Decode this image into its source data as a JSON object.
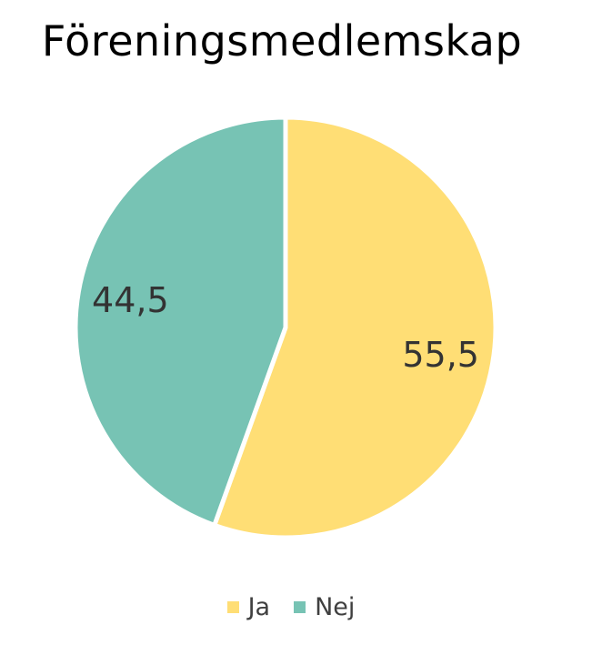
{
  "chart_data": {
    "type": "pie",
    "title": "Föreningsmedlemskap",
    "categories": [
      "Ja",
      "Nej"
    ],
    "values": [
      55.5,
      44.5
    ],
    "value_labels": [
      "55,5",
      "44,5"
    ],
    "colors": [
      "#FFDE75",
      "#77C3B4"
    ],
    "start_angle_deg": 0,
    "direction": "clockwise",
    "legend_position": "bottom"
  }
}
